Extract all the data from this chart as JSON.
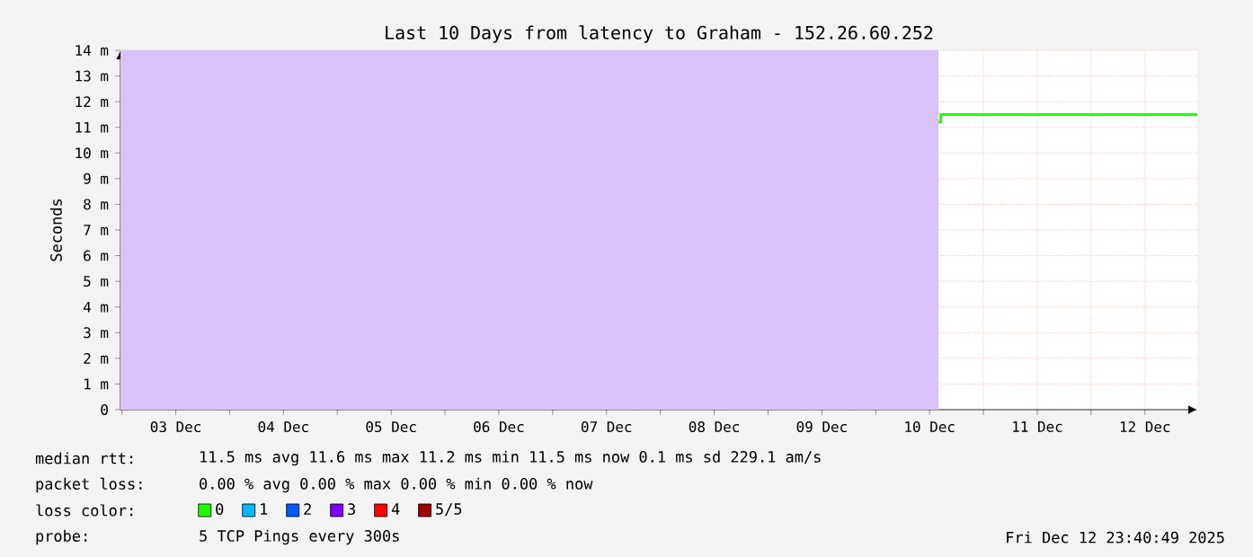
{
  "chart_data": {
    "type": "step",
    "title": "Last 10 Days from latency to Graham - 152.26.60.252",
    "ylabel": "Seconds",
    "x": [
      "2025-12-10T14:00",
      "2025-12-10T14:30",
      "2025-12-10T20:00",
      "2025-12-11T06:00",
      "2025-12-11T18:00",
      "2025-12-12T06:00",
      "2025-12-12T18:00",
      "2025-12-12T23:40"
    ],
    "series": [
      {
        "name": "0",
        "color": "#20ff00",
        "values": [
          11.2,
          11.5,
          11.5,
          11.5,
          11.5,
          11.5,
          11.5,
          11.5
        ]
      },
      {
        "name": "1",
        "color": "#00b8ff",
        "values": [
          null,
          null,
          null,
          null,
          null,
          null,
          null,
          null
        ]
      },
      {
        "name": "2",
        "color": "#0059ff",
        "values": [
          null,
          null,
          null,
          null,
          null,
          null,
          null,
          null
        ]
      },
      {
        "name": "3",
        "color": "#7e00ff",
        "values": [
          null,
          null,
          null,
          null,
          null,
          null,
          null,
          null
        ]
      },
      {
        "name": "4",
        "color": "#ff0000",
        "values": [
          null,
          null,
          null,
          null,
          null,
          null,
          null,
          null
        ]
      },
      {
        "name": "5/5",
        "color": "#a10000",
        "values": [
          null,
          null,
          null,
          null,
          null,
          null,
          null,
          null
        ]
      }
    ],
    "legend_title": "loss color:",
    "legend": "bottom",
    "xlim": [
      "2025-12-02T23:40",
      "2025-12-12T23:40"
    ],
    "xticks": [
      {
        "value": "2025-12-03T00:00",
        "label": null
      },
      {
        "value": "2025-12-03T12:00",
        "label": "03 Dec"
      },
      {
        "value": "2025-12-04T00:00",
        "label": null
      },
      {
        "value": "2025-12-04T12:00",
        "label": "04 Dec"
      },
      {
        "value": "2025-12-05T00:00",
        "label": null
      },
      {
        "value": "2025-12-05T12:00",
        "label": "05 Dec"
      },
      {
        "value": "2025-12-06T00:00",
        "label": null
      },
      {
        "value": "2025-12-06T12:00",
        "label": "06 Dec"
      },
      {
        "value": "2025-12-07T00:00",
        "label": null
      },
      {
        "value": "2025-12-07T12:00",
        "label": "07 Dec"
      },
      {
        "value": "2025-12-08T00:00",
        "label": null
      },
      {
        "value": "2025-12-08T12:00",
        "label": "08 Dec"
      },
      {
        "value": "2025-12-09T00:00",
        "label": null
      },
      {
        "value": "2025-12-09T12:00",
        "label": "09 Dec"
      },
      {
        "value": "2025-12-10T00:00",
        "label": null
      },
      {
        "value": "2025-12-10T12:00",
        "label": "10 Dec"
      },
      {
        "value": "2025-12-11T00:00",
        "label": null
      },
      {
        "value": "2025-12-11T12:00",
        "label": "11 Dec"
      },
      {
        "value": "2025-12-12T00:00",
        "label": null
      },
      {
        "value": "2025-12-12T12:00",
        "label": "12 Dec"
      }
    ],
    "ylim": [
      0,
      14
    ],
    "yticks": [
      0,
      {
        "value": 1,
        "label": "1 m"
      },
      {
        "value": 2,
        "label": "2 m"
      },
      {
        "value": 3,
        "label": "3 m"
      },
      {
        "value": 4,
        "label": "4 m"
      },
      {
        "value": 5,
        "label": "5 m"
      },
      {
        "value": 6,
        "label": "6 m"
      },
      {
        "value": 7,
        "label": "7 m"
      },
      {
        "value": 8,
        "label": "8 m"
      },
      {
        "value": 9,
        "label": "9 m"
      },
      {
        "value": 10,
        "label": "10 m"
      },
      {
        "value": 11,
        "label": "11 m"
      },
      {
        "value": 12,
        "label": "12 m"
      },
      {
        "value": 13,
        "label": "13 m"
      },
      {
        "value": 14,
        "label": "14 m"
      }
    ],
    "grid": true,
    "bands": [
      {
        "axis": "x",
        "from": "2025-12-02T23:40",
        "to": "2025-12-10T14:00",
        "color": "#d9c2f9"
      }
    ],
    "annotations": [
      "median rtt:",
      "11.5 ms avg  11.6 ms max  11.2 ms min  11.5 ms now  0.1 ms sd  229.1   am/s",
      "packet loss:",
      "0.00 % avg  0.00 % max  0.00 % min  0.00 % now",
      "probe:",
      "5 TCP Pings every 300s",
      "Fri Dec 12 23:40:49 2025"
    ]
  }
}
